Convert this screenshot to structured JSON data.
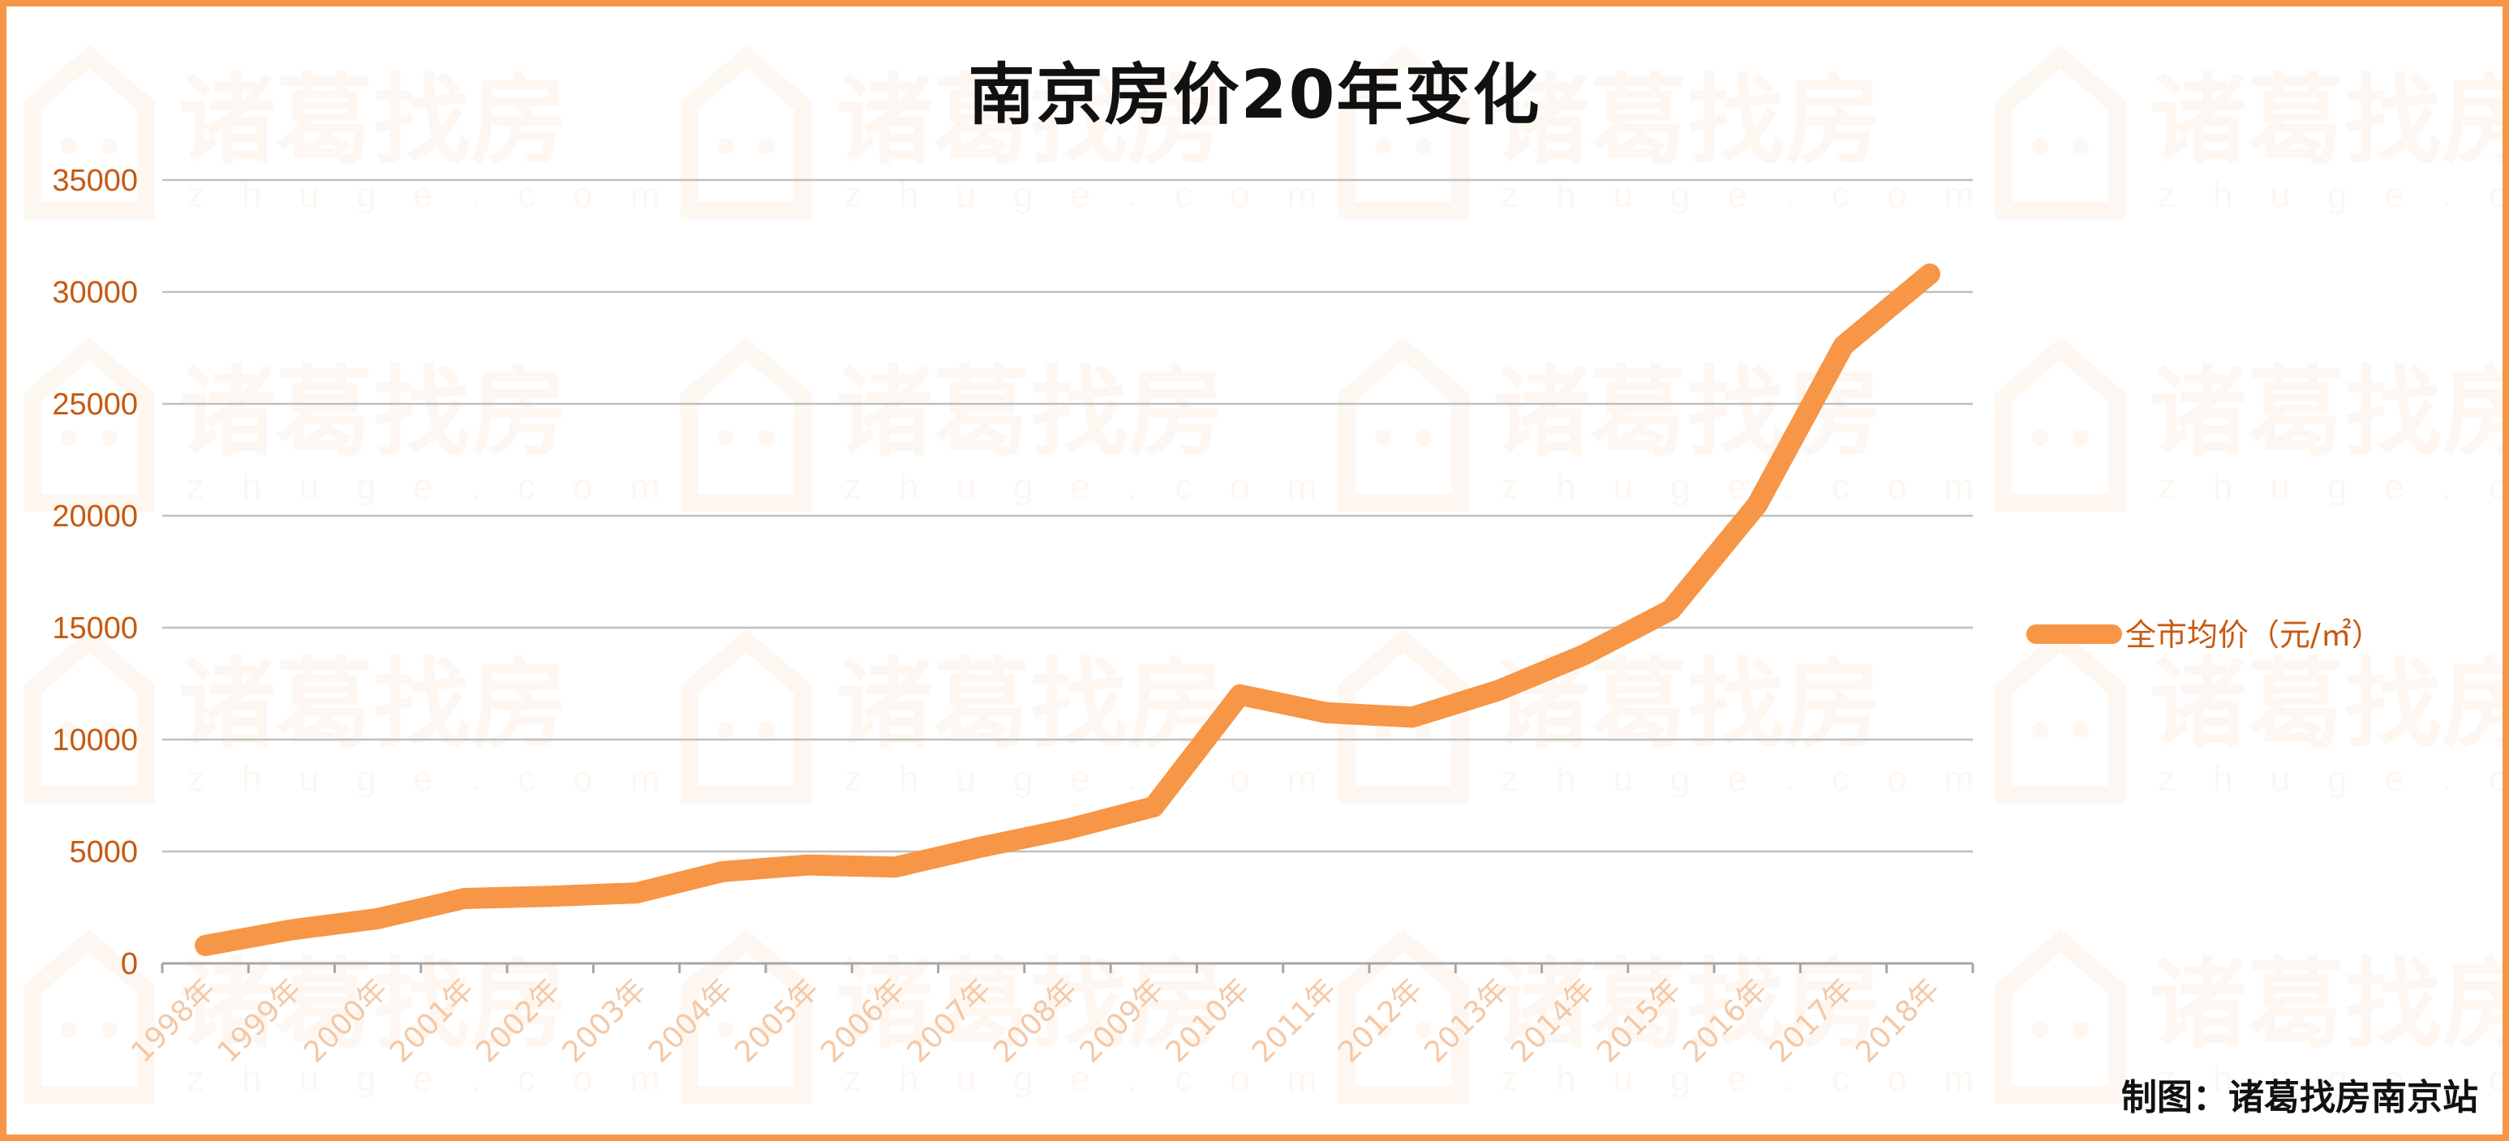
{
  "chart_data": {
    "type": "line",
    "title": "南京房价20年变化",
    "credit": "制图：诸葛找房南京站",
    "watermark": "诸葛找房",
    "watermark_sub": "zhuge.com",
    "legend_position": "right",
    "grid": true,
    "ylim": [
      0,
      35000
    ],
    "yticks": [
      0,
      5000,
      10000,
      15000,
      20000,
      25000,
      30000,
      35000
    ],
    "categories": [
      "1998年",
      "1999年",
      "2000年",
      "2001年",
      "2002年",
      "2003年",
      "2004年",
      "2005年",
      "2006年",
      "2007年",
      "2008年",
      "2009年",
      "2010年",
      "2011年",
      "2012年",
      "2013年",
      "2014年",
      "2015年",
      "2016年",
      "2017年",
      "2018年"
    ],
    "series": [
      {
        "name": "全市均价（元/㎡）",
        "color": "#F79646",
        "values": [
          800,
          1500,
          2000,
          2900,
          3000,
          3150,
          4100,
          4400,
          4300,
          5200,
          6000,
          7000,
          12000,
          11200,
          11000,
          12200,
          13800,
          15800,
          20500,
          27600,
          30800
        ]
      }
    ]
  }
}
